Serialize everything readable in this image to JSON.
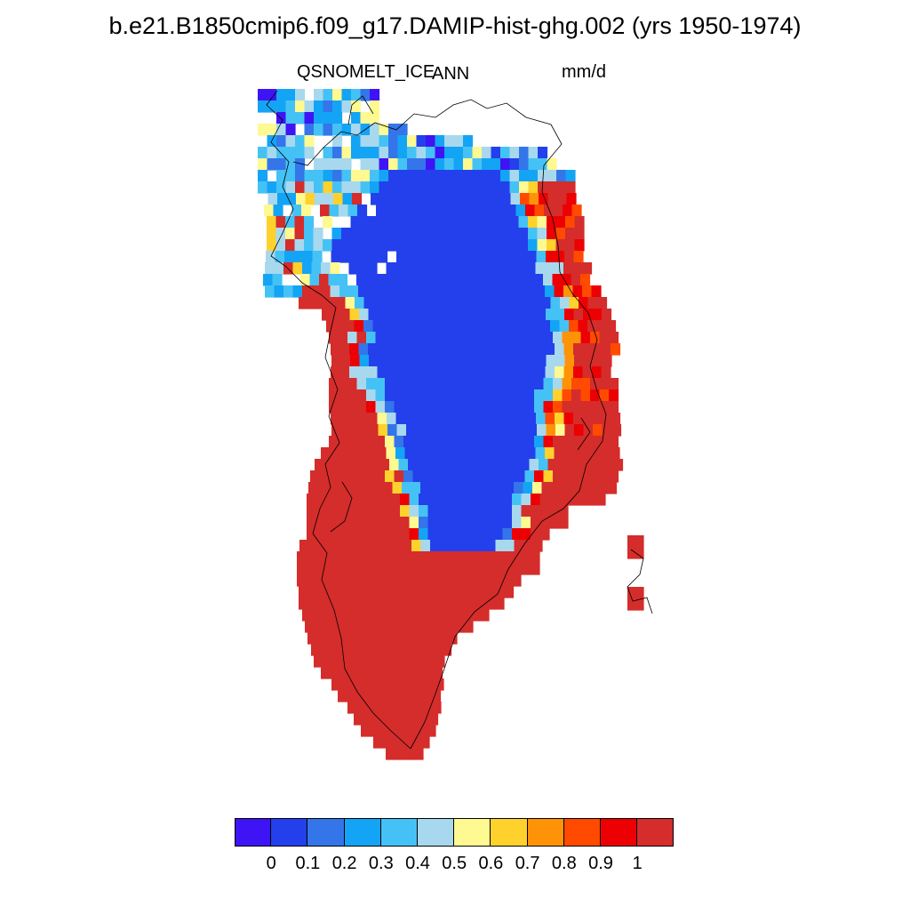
{
  "title": "b.e21.B1850cmip6.f09_g17.DAMIP-hist-ghg.002 (yrs 1950-1974)",
  "variable": "QSNOMELT_ICE",
  "season": "ANN",
  "units": "mm/d",
  "colorbar": {
    "colors": [
      "#3e14f5",
      "#2340ec",
      "#3475ea",
      "#14a4f5",
      "#45c2f5",
      "#a8d8ee",
      "#fff991",
      "#ffd12c",
      "#ff9308",
      "#ff4a00",
      "#ec0003",
      "#d42d2b"
    ],
    "tick_labels": [
      "0",
      "0.1",
      "0.2",
      "0.3",
      "0.4",
      "0.5",
      "0.6",
      "0.7",
      "0.8",
      "0.9",
      "1"
    ]
  },
  "chart_data": {
    "type": "heatmap",
    "title": "b.e21.B1850cmip6.f09_g17.DAMIP-hist-ghg.002 (yrs 1950-1974)",
    "variable": "QSNOMELT_ICE",
    "period": "ANN",
    "units": "mm/d",
    "levels": [
      0,
      0.1,
      0.2,
      0.3,
      0.4,
      0.5,
      0.6,
      0.7,
      0.8,
      0.9,
      1
    ],
    "value_range": [
      0,
      1
    ],
    "pattern": {
      "interior_ice_sheet": "0.0-0.1",
      "north_margin": "0.1-0.6",
      "northwest_and_northeast_margins": "0.4-1.0",
      "west_and_south_margins": ">1",
      "southeast_margin": ">1"
    }
  }
}
